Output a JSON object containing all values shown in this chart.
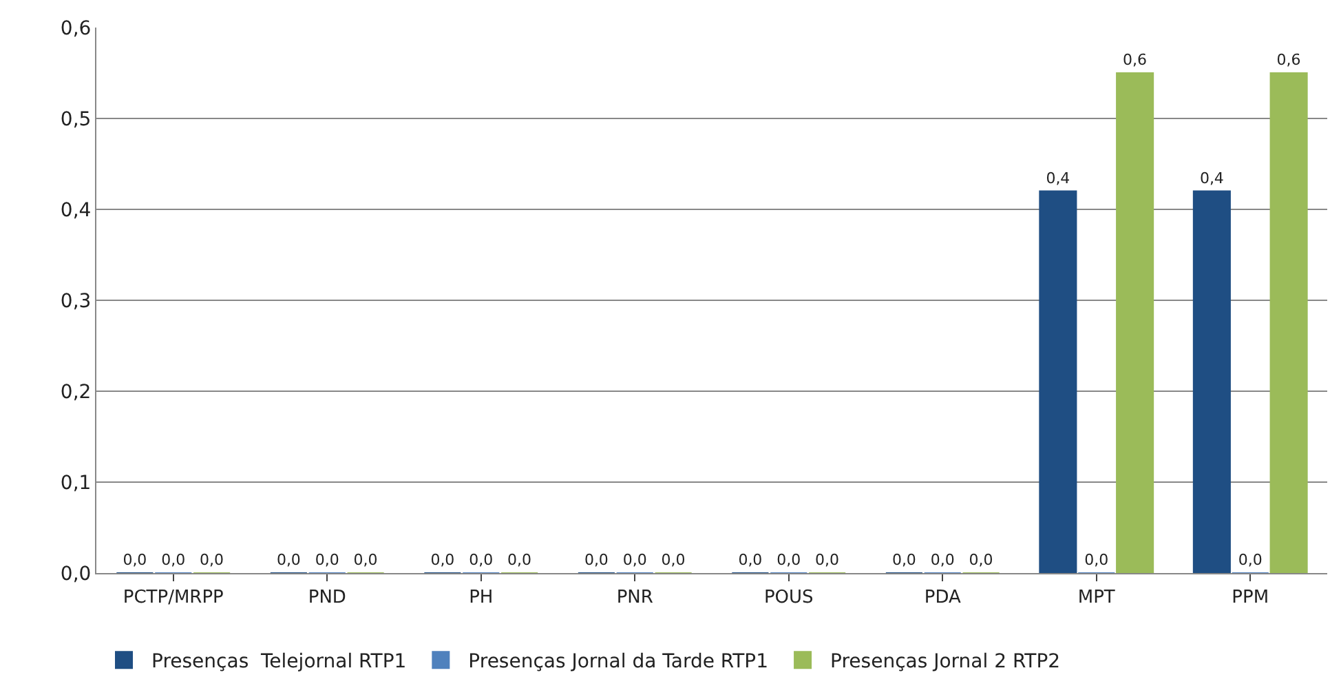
{
  "chart_data": {
    "type": "bar",
    "categories": [
      "PCTP/MRPP",
      "PND",
      "PH",
      "PNR",
      "POUS",
      "PDA",
      "MPT",
      "PPM"
    ],
    "series": [
      {
        "name": "Presenças  Telejornal RTP1",
        "color": "#1f4e83",
        "values": [
          0,
          0,
          0,
          0,
          0,
          0,
          0.42,
          0.42
        ],
        "value_labels": [
          "0,0",
          "0,0",
          "0,0",
          "0,0",
          "0,0",
          "0,0",
          "0,4",
          "0,4"
        ]
      },
      {
        "name": "Presenças Jornal da Tarde RTP1",
        "color": "#4f81bd",
        "values": [
          0,
          0,
          0,
          0,
          0,
          0,
          0,
          0
        ],
        "value_labels": [
          "0,0",
          "0,0",
          "0,0",
          "0,0",
          "0,0",
          "0,0",
          "0,0",
          "0,0"
        ]
      },
      {
        "name": "Presenças Jornal 2 RTP2",
        "color": "#9bbb59",
        "values": [
          0,
          0,
          0,
          0,
          0,
          0,
          0.55,
          0.55
        ],
        "value_labels": [
          "0,0",
          "0,0",
          "0,0",
          "0,0",
          "0,0",
          "0,0",
          "0,6",
          "0,6"
        ]
      }
    ],
    "ylim": [
      0,
      0.6
    ],
    "yticks": [
      {
        "value": 0,
        "label": "0,0"
      },
      {
        "value": 0.1,
        "label": "0,1"
      },
      {
        "value": 0.2,
        "label": "0,2"
      },
      {
        "value": 0.3,
        "label": "0,3"
      },
      {
        "value": 0.4,
        "label": "0,4"
      },
      {
        "value": 0.5,
        "label": "0,5"
      },
      {
        "value": 0.6,
        "label": "0,6"
      }
    ],
    "grid": "y",
    "legend": "bottom"
  }
}
